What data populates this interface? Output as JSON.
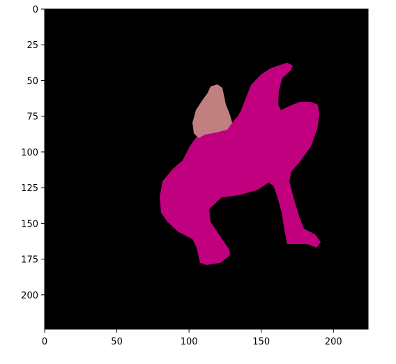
{
  "image_plot": {
    "x_ticks": [
      "0",
      "50",
      "100",
      "150",
      "200"
    ],
    "y_ticks": [
      "0",
      "25",
      "50",
      "75",
      "100",
      "125",
      "150",
      "175",
      "200"
    ],
    "x_tick_values": [
      0,
      50,
      100,
      150,
      200
    ],
    "y_tick_values": [
      0,
      25,
      50,
      75,
      100,
      125,
      150,
      175,
      200
    ],
    "extent": [
      0,
      224
    ],
    "colors": {
      "background": "#000000",
      "body_mask": "#c0007f",
      "head_mask": "#c08080"
    }
  }
}
